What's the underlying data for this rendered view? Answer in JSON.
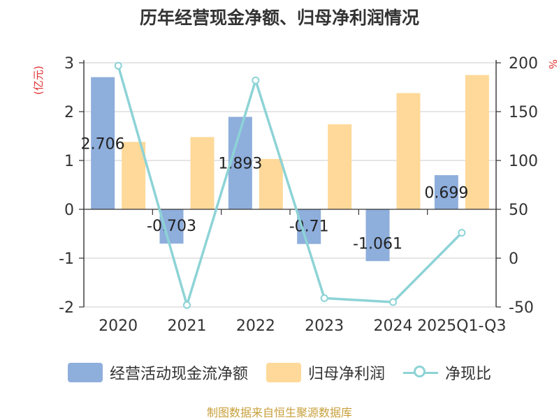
{
  "title": "历年经营现金净额、归母净利润情况",
  "source": "制图数据来自恒生聚源数据库",
  "left_axis_unit": "(亿元)",
  "right_axis_unit": "%",
  "colors": {
    "cashflow": "#8eaedc",
    "profit": "#fed999",
    "ratio": "#8dd3d6",
    "unit": "#e03030",
    "source": "#c8a03c"
  },
  "legend": {
    "cashflow": "经营活动现金流净额",
    "profit": "归母净利润",
    "ratio": "净现比"
  },
  "chart_data": {
    "type": "bar",
    "categories": [
      "2020",
      "2021",
      "2022",
      "2023",
      "2024",
      "2025Q1-Q3"
    ],
    "series": [
      {
        "name": "经营活动现金流净额",
        "type": "bar",
        "axis": "left",
        "values": [
          2.706,
          -0.703,
          1.893,
          -0.71,
          -1.061,
          0.699
        ],
        "labels": [
          "2.706",
          "-0.703",
          "1.893",
          "-0.71",
          "-1.061",
          "0.699"
        ]
      },
      {
        "name": "归母净利润",
        "type": "bar",
        "axis": "left",
        "values": [
          1.38,
          1.48,
          1.03,
          1.74,
          2.38,
          2.75
        ]
      },
      {
        "name": "净现比",
        "type": "line",
        "axis": "right",
        "values": [
          197,
          -48,
          182,
          -41,
          -45,
          26
        ]
      }
    ],
    "left_ticks": [
      "3",
      "2",
      "1",
      "0",
      "-1",
      "-2"
    ],
    "right_ticks": [
      "200",
      "150",
      "100",
      "50",
      "0",
      "-50"
    ],
    "ylim_left": [
      -2,
      3
    ],
    "ylim_right": [
      -50,
      200
    ],
    "grid": true,
    "legend_position": "bottom"
  }
}
